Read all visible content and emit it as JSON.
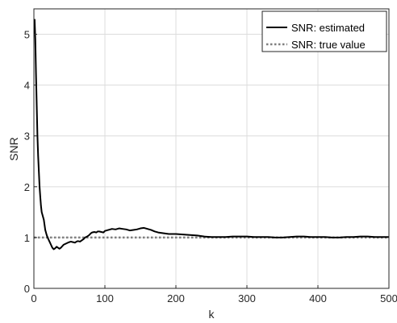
{
  "chart_data": {
    "type": "line",
    "xlabel": "k",
    "ylabel": "SNR",
    "xlim": [
      0,
      500
    ],
    "ylim": [
      0,
      5.5
    ],
    "xticks": [
      0,
      100,
      200,
      300,
      400,
      500
    ],
    "xtick_labels": [
      "0",
      "100",
      "200",
      "300",
      "400",
      "500"
    ],
    "yticks": [
      0,
      1,
      2,
      3,
      4,
      5
    ],
    "ytick_labels": [
      "0",
      "1",
      "2",
      "3",
      "4",
      "5"
    ],
    "grid": true,
    "legend_position": "top-right",
    "series": [
      {
        "name": "SNR: estimated",
        "style": "solid",
        "color": "#000000",
        "x": [
          1,
          2,
          3,
          4,
          5,
          6,
          7,
          8,
          9,
          10,
          11,
          12,
          13,
          14,
          15,
          16,
          18,
          20,
          22,
          24,
          26,
          28,
          30,
          32,
          34,
          36,
          38,
          40,
          42,
          45,
          48,
          50,
          52,
          55,
          58,
          60,
          62,
          65,
          68,
          70,
          72,
          75,
          78,
          80,
          82,
          85,
          88,
          90,
          92,
          95,
          98,
          100,
          105,
          110,
          115,
          120,
          125,
          130,
          135,
          140,
          145,
          150,
          155,
          160,
          165,
          170,
          175,
          180,
          185,
          190,
          195,
          200,
          210,
          220,
          230,
          240,
          250,
          260,
          270,
          280,
          290,
          300,
          310,
          320,
          330,
          340,
          350,
          360,
          370,
          380,
          390,
          400,
          410,
          420,
          430,
          440,
          450,
          460,
          470,
          480,
          490,
          500
        ],
        "y": [
          5.3,
          4.9,
          4.2,
          3.6,
          3.0,
          2.6,
          2.3,
          2.0,
          1.8,
          1.62,
          1.5,
          1.45,
          1.4,
          1.35,
          1.25,
          1.15,
          1.05,
          0.98,
          0.92,
          0.86,
          0.8,
          0.77,
          0.79,
          0.82,
          0.8,
          0.78,
          0.8,
          0.83,
          0.86,
          0.88,
          0.9,
          0.91,
          0.92,
          0.91,
          0.9,
          0.92,
          0.93,
          0.92,
          0.95,
          0.97,
          1.0,
          1.02,
          1.05,
          1.08,
          1.1,
          1.11,
          1.1,
          1.12,
          1.12,
          1.11,
          1.1,
          1.13,
          1.15,
          1.17,
          1.16,
          1.18,
          1.17,
          1.16,
          1.14,
          1.15,
          1.16,
          1.18,
          1.19,
          1.17,
          1.15,
          1.12,
          1.1,
          1.09,
          1.08,
          1.07,
          1.07,
          1.07,
          1.06,
          1.05,
          1.04,
          1.02,
          1.01,
          1.01,
          1.01,
          1.02,
          1.02,
          1.02,
          1.01,
          1.01,
          1.01,
          1.0,
          1.0,
          1.01,
          1.02,
          1.02,
          1.01,
          1.01,
          1.01,
          1.0,
          1.0,
          1.01,
          1.01,
          1.02,
          1.02,
          1.01,
          1.01,
          1.01
        ]
      },
      {
        "name": "SNR: true value",
        "style": "dotted",
        "color": "#7f7f7f",
        "x": [
          0,
          500
        ],
        "y": [
          1,
          1
        ]
      }
    ]
  }
}
